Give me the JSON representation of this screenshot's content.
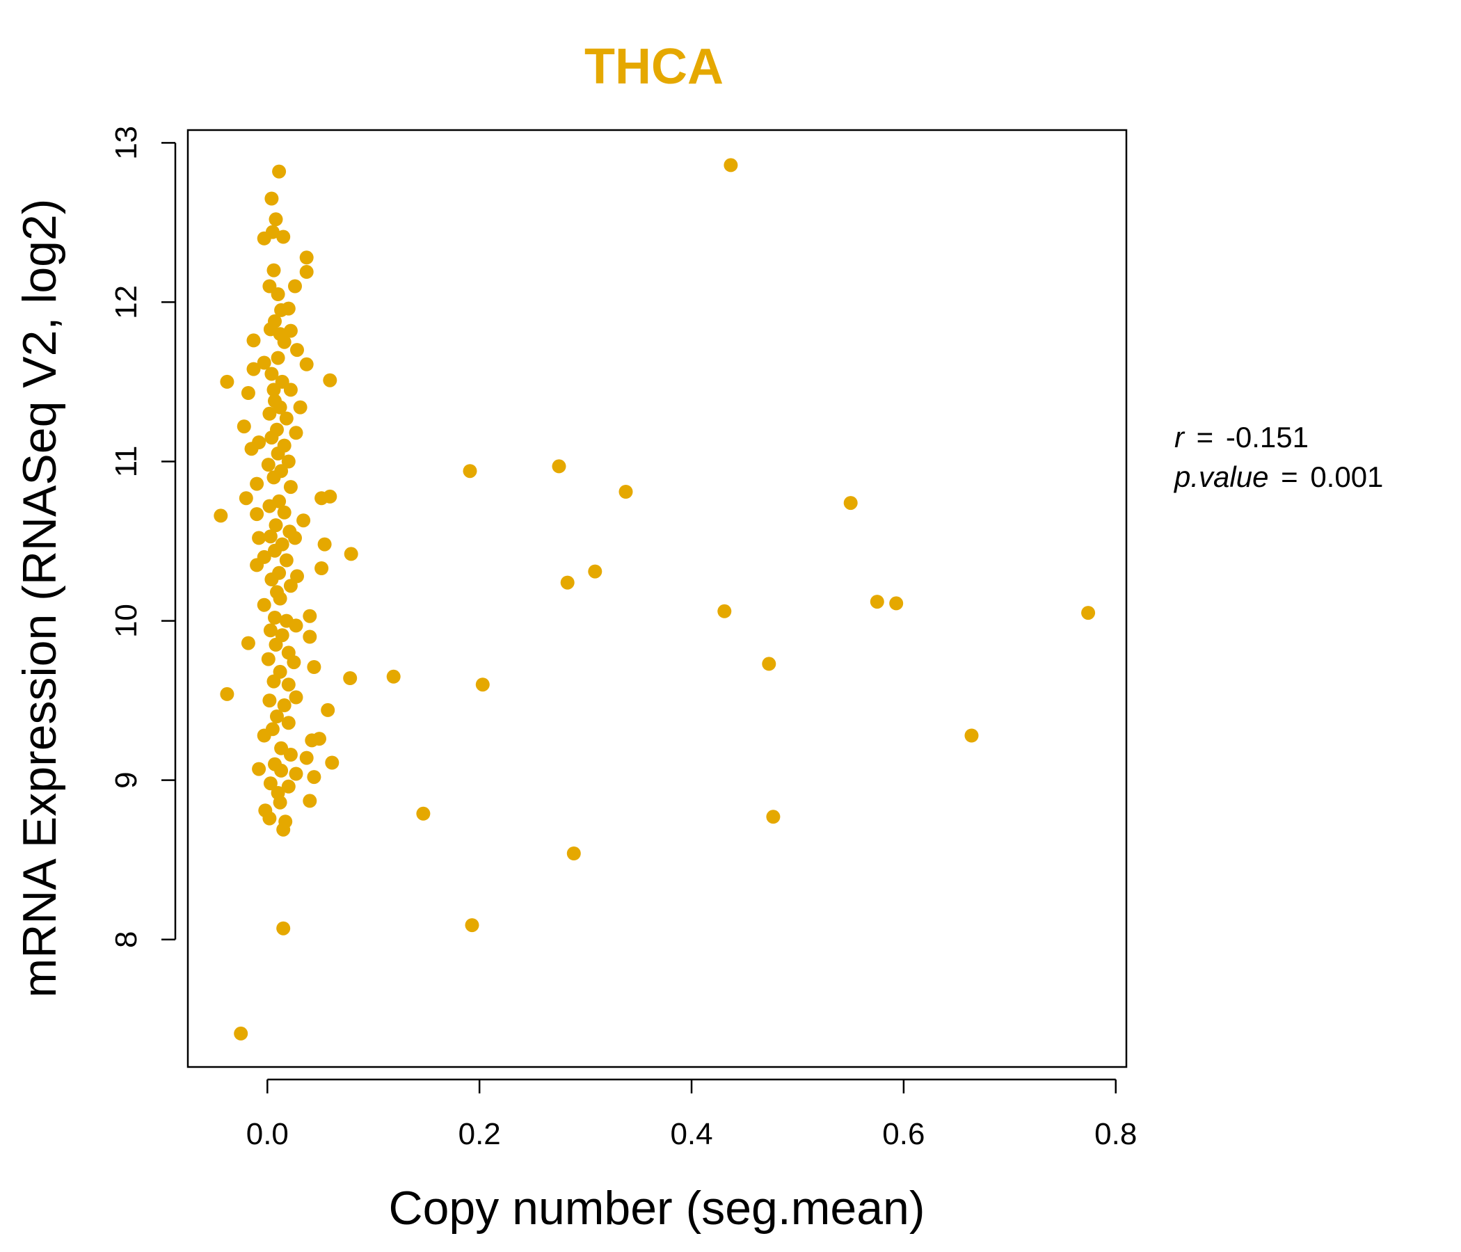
{
  "chart_data": {
    "type": "scatter",
    "title": "THCA",
    "xlabel": "Copy number (seg.mean)",
    "ylabel": "mRNA Expression (RNASeq V2, log2)",
    "xlim": [
      -0.075,
      0.81
    ],
    "ylim": [
      7.2,
      13.08
    ],
    "x_ticks": [
      0.0,
      0.2,
      0.4,
      0.6,
      0.8
    ],
    "x_tick_labels": [
      "0.0",
      "0.2",
      "0.4",
      "0.6",
      "0.8"
    ],
    "y_ticks": [
      8,
      9,
      10,
      11,
      12,
      13
    ],
    "y_tick_labels": [
      "8",
      "9",
      "10",
      "11",
      "12",
      "13"
    ],
    "grid": false,
    "stats": {
      "r_label": "r",
      "r_value": "-0.151",
      "p_label": "p.value",
      "p_value": "0.001",
      "equals": "="
    },
    "colors": {
      "points": "#E5A800",
      "title": "#E5A800",
      "axes": "#000000"
    },
    "points": [
      [
        0.437,
        12.86
      ],
      [
        0.011,
        12.82
      ],
      [
        0.004,
        12.65
      ],
      [
        0.008,
        12.52
      ],
      [
        0.005,
        12.44
      ],
      [
        -0.003,
        12.4
      ],
      [
        0.015,
        12.41
      ],
      [
        0.037,
        12.28
      ],
      [
        0.037,
        12.19
      ],
      [
        0.026,
        12.1
      ],
      [
        0.006,
        12.2
      ],
      [
        0.002,
        12.1
      ],
      [
        0.01,
        12.05
      ],
      [
        0.013,
        11.95
      ],
      [
        0.02,
        11.96
      ],
      [
        0.007,
        11.88
      ],
      [
        0.012,
        11.8
      ],
      [
        0.022,
        11.82
      ],
      [
        -0.013,
        11.76
      ],
      [
        0.003,
        11.83
      ],
      [
        0.016,
        11.75
      ],
      [
        0.028,
        11.7
      ],
      [
        0.01,
        11.65
      ],
      [
        0.037,
        11.61
      ],
      [
        -0.003,
        11.62
      ],
      [
        -0.013,
        11.58
      ],
      [
        0.004,
        11.55
      ],
      [
        0.014,
        11.5
      ],
      [
        0.006,
        11.45
      ],
      [
        -0.038,
        11.5
      ],
      [
        0.059,
        11.51
      ],
      [
        0.022,
        11.45
      ],
      [
        -0.018,
        11.43
      ],
      [
        0.007,
        11.38
      ],
      [
        0.012,
        11.34
      ],
      [
        0.031,
        11.34
      ],
      [
        0.002,
        11.3
      ],
      [
        0.018,
        11.27
      ],
      [
        -0.022,
        11.22
      ],
      [
        0.009,
        11.2
      ],
      [
        0.027,
        11.18
      ],
      [
        0.004,
        11.15
      ],
      [
        -0.008,
        11.12
      ],
      [
        0.016,
        11.1
      ],
      [
        -0.015,
        11.08
      ],
      [
        0.01,
        11.05
      ],
      [
        0.02,
        11.0
      ],
      [
        0.001,
        10.98
      ],
      [
        0.013,
        10.94
      ],
      [
        0.191,
        10.94
      ],
      [
        0.275,
        10.97
      ],
      [
        0.006,
        10.9
      ],
      [
        -0.01,
        10.86
      ],
      [
        0.022,
        10.84
      ],
      [
        0.338,
        10.81
      ],
      [
        -0.02,
        10.77
      ],
      [
        0.051,
        10.77
      ],
      [
        0.059,
        10.78
      ],
      [
        0.011,
        10.75
      ],
      [
        0.002,
        10.72
      ],
      [
        0.55,
        10.74
      ],
      [
        0.016,
        10.68
      ],
      [
        -0.044,
        10.66
      ],
      [
        -0.01,
        10.67
      ],
      [
        0.034,
        10.63
      ],
      [
        0.008,
        10.6
      ],
      [
        0.021,
        10.56
      ],
      [
        0.003,
        10.53
      ],
      [
        0.026,
        10.52
      ],
      [
        -0.008,
        10.52
      ],
      [
        0.014,
        10.48
      ],
      [
        0.054,
        10.48
      ],
      [
        0.007,
        10.44
      ],
      [
        0.079,
        10.42
      ],
      [
        -0.003,
        10.4
      ],
      [
        0.018,
        10.38
      ],
      [
        -0.01,
        10.35
      ],
      [
        0.051,
        10.33
      ],
      [
        0.309,
        10.31
      ],
      [
        0.011,
        10.3
      ],
      [
        0.028,
        10.28
      ],
      [
        0.004,
        10.26
      ],
      [
        0.283,
        10.24
      ],
      [
        0.022,
        10.22
      ],
      [
        0.009,
        10.18
      ],
      [
        0.575,
        10.12
      ],
      [
        0.593,
        10.11
      ],
      [
        0.012,
        10.14
      ],
      [
        -0.003,
        10.1
      ],
      [
        0.431,
        10.06
      ],
      [
        0.774,
        10.05
      ],
      [
        0.04,
        10.03
      ],
      [
        0.007,
        10.02
      ],
      [
        0.018,
        10.0
      ],
      [
        0.027,
        9.97
      ],
      [
        0.003,
        9.94
      ],
      [
        0.014,
        9.91
      ],
      [
        0.04,
        9.9
      ],
      [
        -0.018,
        9.86
      ],
      [
        0.008,
        9.85
      ],
      [
        0.02,
        9.8
      ],
      [
        0.001,
        9.76
      ],
      [
        0.025,
        9.74
      ],
      [
        0.473,
        9.73
      ],
      [
        0.044,
        9.71
      ],
      [
        0.012,
        9.68
      ],
      [
        0.119,
        9.65
      ],
      [
        0.078,
        9.64
      ],
      [
        0.006,
        9.62
      ],
      [
        0.02,
        9.6
      ],
      [
        0.203,
        9.6
      ],
      [
        -0.038,
        9.54
      ],
      [
        0.027,
        9.52
      ],
      [
        0.002,
        9.5
      ],
      [
        0.016,
        9.47
      ],
      [
        0.057,
        9.44
      ],
      [
        0.009,
        9.4
      ],
      [
        0.02,
        9.36
      ],
      [
        0.005,
        9.32
      ],
      [
        -0.003,
        9.28
      ],
      [
        0.664,
        9.28
      ],
      [
        0.042,
        9.25
      ],
      [
        0.049,
        9.26
      ],
      [
        0.013,
        9.2
      ],
      [
        0.022,
        9.16
      ],
      [
        0.037,
        9.14
      ],
      [
        0.061,
        9.11
      ],
      [
        0.007,
        9.1
      ],
      [
        -0.008,
        9.07
      ],
      [
        0.013,
        9.06
      ],
      [
        0.027,
        9.04
      ],
      [
        0.044,
        9.02
      ],
      [
        0.003,
        8.98
      ],
      [
        0.02,
        8.96
      ],
      [
        0.01,
        8.92
      ],
      [
        0.04,
        8.87
      ],
      [
        0.012,
        8.86
      ],
      [
        -0.002,
        8.81
      ],
      [
        0.147,
        8.79
      ],
      [
        0.002,
        8.76
      ],
      [
        0.477,
        8.77
      ],
      [
        0.017,
        8.74
      ],
      [
        0.015,
        8.69
      ],
      [
        0.289,
        8.54
      ],
      [
        0.193,
        8.09
      ],
      [
        0.015,
        8.07
      ],
      [
        -0.025,
        7.41
      ]
    ]
  }
}
